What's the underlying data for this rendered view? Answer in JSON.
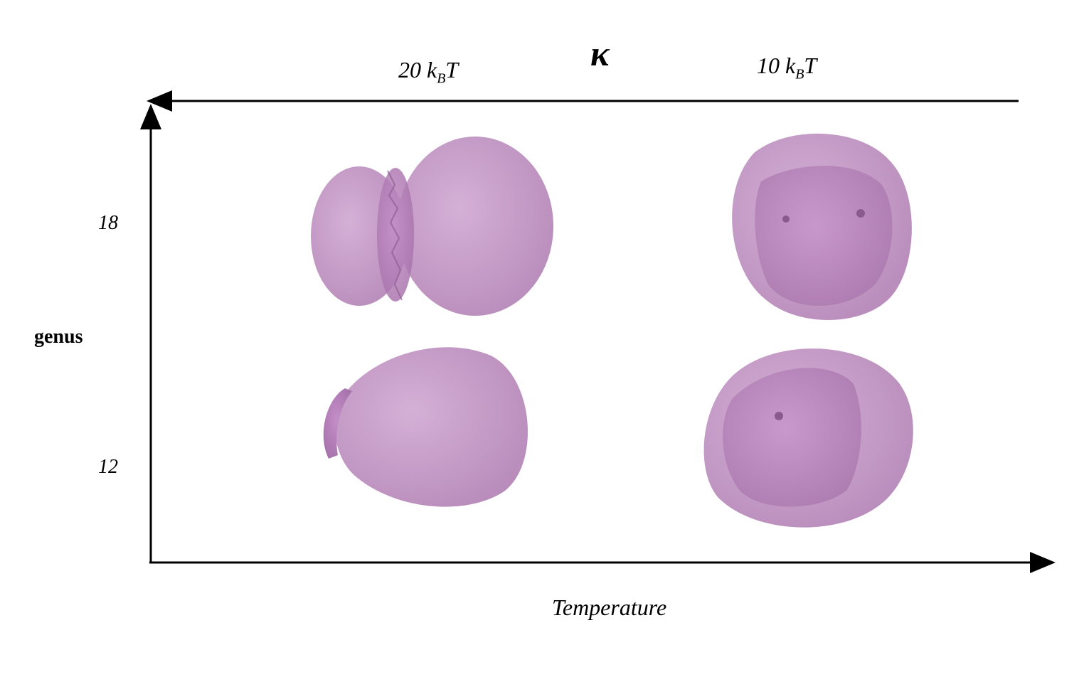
{
  "top_axis": {
    "symbol": "κ",
    "left_label": {
      "value": "20",
      "k": "k",
      "sub": "B",
      "t": "T"
    },
    "right_label": {
      "value": "10",
      "k": "k",
      "sub": "B",
      "t": "T"
    },
    "direction": "leftward"
  },
  "y_axis": {
    "label": "genus",
    "ticks": [
      "18",
      "12"
    ]
  },
  "x_axis": {
    "label": "Temperature"
  },
  "colors": {
    "vesicle": "#c49cc4",
    "vesicle_dark": "#a676a8",
    "axis": "#000000"
  },
  "panels": [
    {
      "genus": "18",
      "kappa": "20 kBT",
      "shape": "two-lobed vesicle with neck pores"
    },
    {
      "genus": "18",
      "kappa": "10 kBT",
      "shape": "near-spherical vesicle with scattered pores"
    },
    {
      "genus": "12",
      "kappa": "20 kBT",
      "shape": "pear-shaped vesicle with small pore cap"
    },
    {
      "genus": "12",
      "kappa": "10 kBT",
      "shape": "near-spherical vesicle with scattered pores"
    }
  ]
}
